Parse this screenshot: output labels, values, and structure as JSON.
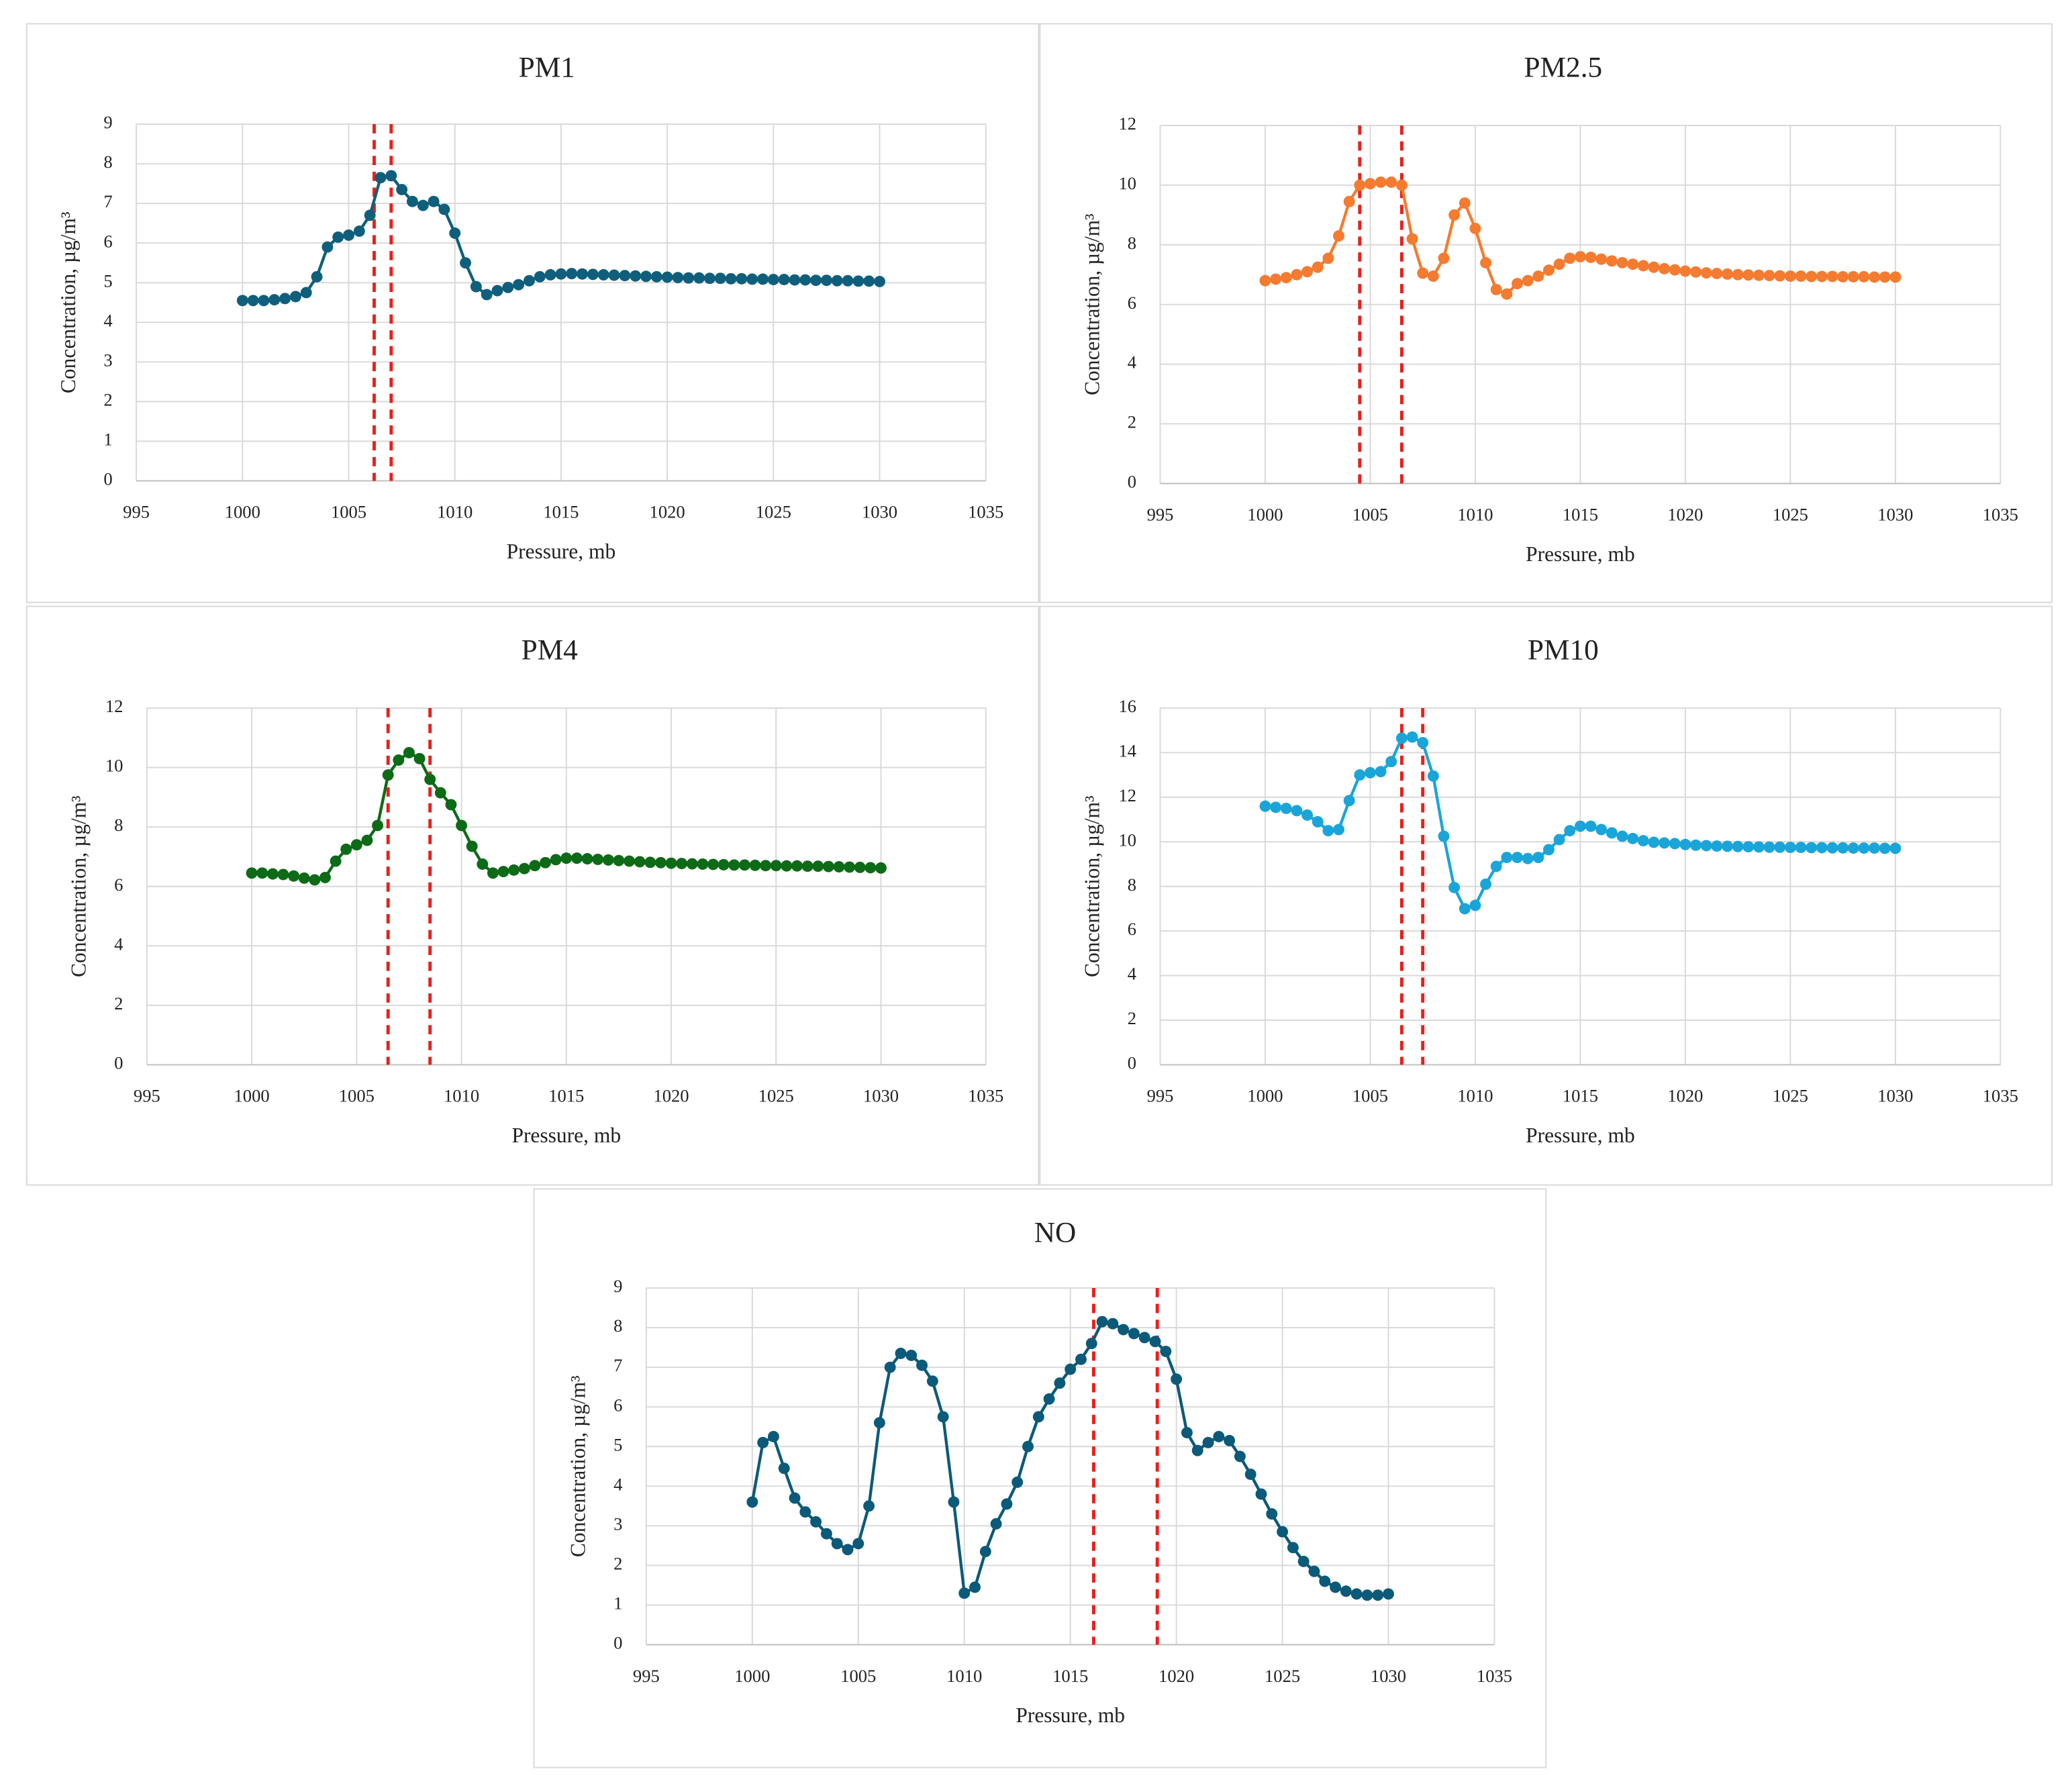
{
  "chart_data": [
    {
      "type": "line",
      "title": "PM1",
      "xlabel": "Pressure, mb",
      "ylabel": "Concentration, µg/m³",
      "color": "#0f5f7c",
      "vline_color": "#e8201c",
      "x": [
        1000,
        1000.5,
        1001,
        1001.5,
        1002,
        1002.5,
        1003,
        1003.5,
        1004,
        1004.5,
        1005,
        1005.5,
        1006,
        1006.5,
        1007,
        1007.5,
        1008,
        1008.5,
        1009,
        1009.5,
        1010,
        1010.5,
        1011,
        1011.5,
        1012,
        1012.5,
        1013,
        1013.5,
        1014,
        1014.5,
        1015,
        1015.5,
        1016,
        1016.5,
        1017,
        1017.5,
        1018,
        1018.5,
        1019,
        1019.5,
        1020,
        1020.5,
        1021,
        1021.5,
        1022,
        1022.5,
        1023,
        1023.5,
        1024,
        1024.5,
        1025,
        1025.5,
        1026,
        1026.5,
        1027,
        1027.5,
        1028,
        1028.5,
        1029,
        1029.5,
        1030
      ],
      "values": [
        4.55,
        4.55,
        4.55,
        4.57,
        4.6,
        4.65,
        4.75,
        5.15,
        5.9,
        6.15,
        6.2,
        6.3,
        6.7,
        7.65,
        7.7,
        7.35,
        7.05,
        6.95,
        7.05,
        6.85,
        6.25,
        5.5,
        4.9,
        4.7,
        4.8,
        4.88,
        4.95,
        5.05,
        5.15,
        5.2,
        5.22,
        5.23,
        5.22,
        5.21,
        5.2,
        5.19,
        5.18,
        5.17,
        5.16,
        5.15,
        5.14,
        5.13,
        5.12,
        5.12,
        5.11,
        5.11,
        5.1,
        5.1,
        5.09,
        5.09,
        5.08,
        5.08,
        5.07,
        5.07,
        5.06,
        5.06,
        5.05,
        5.05,
        5.04,
        5.04,
        5.03
      ],
      "vlines": [
        1006.2,
        1007
      ],
      "xlim": [
        995,
        1035
      ],
      "xticks": [
        995,
        1000,
        1005,
        1010,
        1015,
        1020,
        1025,
        1030,
        1035
      ],
      "ylim": [
        0,
        9
      ],
      "yticks": [
        0,
        1,
        2,
        3,
        4,
        5,
        6,
        7,
        8,
        9
      ],
      "grid": true
    },
    {
      "type": "line",
      "title": "PM2.5",
      "xlabel": "Pressure, mb",
      "ylabel": "Concentration, µg/m³",
      "color": "#f47b2f",
      "vline_color": "#e8201c",
      "x": [
        1000,
        1000.5,
        1001,
        1001.5,
        1002,
        1002.5,
        1003,
        1003.5,
        1004,
        1004.5,
        1005,
        1005.5,
        1006,
        1006.5,
        1007,
        1007.5,
        1008,
        1008.5,
        1009,
        1009.5,
        1010,
        1010.5,
        1011,
        1011.5,
        1012,
        1012.5,
        1013,
        1013.5,
        1014,
        1014.5,
        1015,
        1015.5,
        1016,
        1016.5,
        1017,
        1017.5,
        1018,
        1018.5,
        1019,
        1019.5,
        1020,
        1020.5,
        1021,
        1021.5,
        1022,
        1022.5,
        1023,
        1023.5,
        1024,
        1024.5,
        1025,
        1025.5,
        1026,
        1026.5,
        1027,
        1027.5,
        1028,
        1028.5,
        1029,
        1029.5,
        1030
      ],
      "values": [
        6.8,
        6.85,
        6.9,
        7.0,
        7.1,
        7.25,
        7.55,
        8.3,
        9.45,
        10.0,
        10.05,
        10.1,
        10.1,
        10.0,
        8.2,
        7.05,
        6.95,
        7.55,
        9.0,
        9.4,
        8.55,
        7.4,
        6.5,
        6.35,
        6.7,
        6.8,
        6.95,
        7.15,
        7.35,
        7.55,
        7.6,
        7.58,
        7.52,
        7.46,
        7.4,
        7.35,
        7.3,
        7.25,
        7.2,
        7.16,
        7.12,
        7.09,
        7.06,
        7.04,
        7.02,
        7.0,
        6.99,
        6.98,
        6.97,
        6.96,
        6.95,
        6.95,
        6.94,
        6.94,
        6.94,
        6.93,
        6.93,
        6.93,
        6.92,
        6.92,
        6.92
      ],
      "vlines": [
        1004.5,
        1006.5
      ],
      "xlim": [
        995,
        1035
      ],
      "xticks": [
        995,
        1000,
        1005,
        1010,
        1015,
        1020,
        1025,
        1030,
        1035
      ],
      "ylim": [
        0,
        12
      ],
      "yticks": [
        0,
        2,
        4,
        6,
        8,
        10,
        12
      ],
      "grid": true
    },
    {
      "type": "line",
      "title": "PM4",
      "xlabel": "Pressure, mb",
      "ylabel": "Concentration, µg/m³",
      "color": "#0d6a16",
      "vline_color": "#e8201c",
      "x": [
        1000,
        1000.5,
        1001,
        1001.5,
        1002,
        1002.5,
        1003,
        1003.5,
        1004,
        1004.5,
        1005,
        1005.5,
        1006,
        1006.5,
        1007,
        1007.5,
        1008,
        1008.5,
        1009,
        1009.5,
        1010,
        1010.5,
        1011,
        1011.5,
        1012,
        1012.5,
        1013,
        1013.5,
        1014,
        1014.5,
        1015,
        1015.5,
        1016,
        1016.5,
        1017,
        1017.5,
        1018,
        1018.5,
        1019,
        1019.5,
        1020,
        1020.5,
        1021,
        1021.5,
        1022,
        1022.5,
        1023,
        1023.5,
        1024,
        1024.5,
        1025,
        1025.5,
        1026,
        1026.5,
        1027,
        1027.5,
        1028,
        1028.5,
        1029,
        1029.5,
        1030
      ],
      "values": [
        6.45,
        6.45,
        6.42,
        6.4,
        6.35,
        6.28,
        6.22,
        6.3,
        6.85,
        7.25,
        7.4,
        7.55,
        8.05,
        9.75,
        10.25,
        10.5,
        10.3,
        9.6,
        9.15,
        8.75,
        8.05,
        7.35,
        6.75,
        6.45,
        6.5,
        6.55,
        6.6,
        6.7,
        6.8,
        6.9,
        6.95,
        6.95,
        6.93,
        6.91,
        6.89,
        6.87,
        6.85,
        6.83,
        6.81,
        6.8,
        6.78,
        6.77,
        6.76,
        6.75,
        6.74,
        6.73,
        6.72,
        6.72,
        6.71,
        6.7,
        6.7,
        6.69,
        6.69,
        6.68,
        6.68,
        6.67,
        6.66,
        6.65,
        6.64,
        6.63,
        6.62
      ],
      "vlines": [
        1006.5,
        1008.5
      ],
      "xlim": [
        995,
        1035
      ],
      "xticks": [
        995,
        1000,
        1005,
        1010,
        1015,
        1020,
        1025,
        1030,
        1035
      ],
      "ylim": [
        0,
        12
      ],
      "yticks": [
        0,
        2,
        4,
        6,
        8,
        10,
        12
      ],
      "grid": true
    },
    {
      "type": "line",
      "title": "PM10",
      "xlabel": "Pressure, mb",
      "ylabel": "Concentration, µg/m³",
      "color": "#1aa5d9",
      "vline_color": "#e8201c",
      "x": [
        1000,
        1000.5,
        1001,
        1001.5,
        1002,
        1002.5,
        1003,
        1003.5,
        1004,
        1004.5,
        1005,
        1005.5,
        1006,
        1006.5,
        1007,
        1007.5,
        1008,
        1008.5,
        1009,
        1009.5,
        1010,
        1010.5,
        1011,
        1011.5,
        1012,
        1012.5,
        1013,
        1013.5,
        1014,
        1014.5,
        1015,
        1015.5,
        1016,
        1016.5,
        1017,
        1017.5,
        1018,
        1018.5,
        1019,
        1019.5,
        1020,
        1020.5,
        1021,
        1021.5,
        1022,
        1022.5,
        1023,
        1023.5,
        1024,
        1024.5,
        1025,
        1025.5,
        1026,
        1026.5,
        1027,
        1027.5,
        1028,
        1028.5,
        1029,
        1029.5,
        1030
      ],
      "values": [
        11.6,
        11.55,
        11.5,
        11.4,
        11.2,
        10.9,
        10.5,
        10.55,
        11.85,
        13.0,
        13.1,
        13.15,
        13.6,
        14.65,
        14.7,
        14.45,
        12.95,
        10.25,
        7.95,
        7.0,
        7.15,
        8.1,
        8.9,
        9.3,
        9.3,
        9.25,
        9.3,
        9.65,
        10.1,
        10.5,
        10.7,
        10.7,
        10.55,
        10.4,
        10.25,
        10.15,
        10.05,
        9.98,
        9.95,
        9.92,
        9.88,
        9.85,
        9.83,
        9.81,
        9.8,
        9.79,
        9.78,
        9.77,
        9.76,
        9.76,
        9.75,
        9.75,
        9.74,
        9.74,
        9.73,
        9.73,
        9.72,
        9.72,
        9.72,
        9.71,
        9.71
      ],
      "vlines": [
        1006.5,
        1007.5
      ],
      "xlim": [
        995,
        1035
      ],
      "xticks": [
        995,
        1000,
        1005,
        1010,
        1015,
        1020,
        1025,
        1030,
        1035
      ],
      "ylim": [
        0,
        16
      ],
      "yticks": [
        0,
        2,
        4,
        6,
        8,
        10,
        12,
        14,
        16
      ],
      "grid": true
    },
    {
      "type": "line",
      "title": "NO",
      "xlabel": "Pressure, mb",
      "ylabel": "Concentration, µg/m³",
      "color": "#0b5a79",
      "vline_color": "#e8201c",
      "x": [
        1000,
        1000.5,
        1001,
        1001.5,
        1002,
        1002.5,
        1003,
        1003.5,
        1004,
        1004.5,
        1005,
        1005.5,
        1006,
        1006.5,
        1007,
        1007.5,
        1008,
        1008.5,
        1009,
        1009.5,
        1010,
        1010.5,
        1011,
        1011.5,
        1012,
        1012.5,
        1013,
        1013.5,
        1014,
        1014.5,
        1015,
        1015.5,
        1016,
        1016.5,
        1017,
        1017.5,
        1018,
        1018.5,
        1019,
        1019.5,
        1020,
        1020.5,
        1021,
        1021.5,
        1022,
        1022.5,
        1023,
        1023.5,
        1024,
        1024.5,
        1025,
        1025.5,
        1026,
        1026.5,
        1027,
        1027.5,
        1028,
        1028.5,
        1029,
        1029.5,
        1030
      ],
      "values": [
        3.6,
        5.1,
        5.25,
        4.45,
        3.7,
        3.35,
        3.1,
        2.8,
        2.55,
        2.4,
        2.55,
        3.5,
        5.6,
        7.0,
        7.35,
        7.3,
        7.05,
        6.65,
        5.75,
        3.6,
        1.3,
        1.45,
        2.35,
        3.05,
        3.55,
        4.1,
        5.0,
        5.75,
        6.2,
        6.6,
        6.95,
        7.2,
        7.6,
        8.15,
        8.1,
        7.95,
        7.85,
        7.75,
        7.65,
        7.4,
        6.7,
        5.35,
        4.9,
        5.1,
        5.25,
        5.15,
        4.75,
        4.3,
        3.8,
        3.3,
        2.85,
        2.45,
        2.1,
        1.85,
        1.6,
        1.45,
        1.35,
        1.28,
        1.25,
        1.25,
        1.28
      ],
      "vlines": [
        1016.1,
        1019.1
      ],
      "xlim": [
        995,
        1035
      ],
      "xticks": [
        995,
        1000,
        1005,
        1010,
        1015,
        1020,
        1025,
        1030,
        1035
      ],
      "ylim": [
        0,
        9
      ],
      "yticks": [
        0,
        1,
        2,
        3,
        4,
        5,
        6,
        7,
        8,
        9
      ],
      "grid": true
    }
  ]
}
